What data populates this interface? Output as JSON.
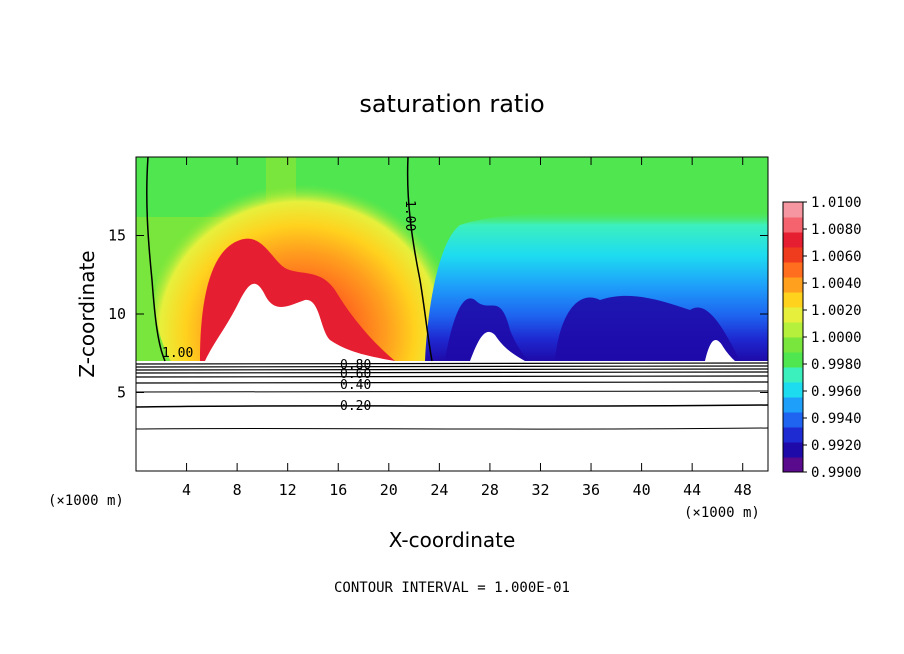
{
  "chart_data": {
    "type": "heatmap",
    "title": "saturation ratio",
    "xlabel": "X-coordinate",
    "ylabel": "Z-coordinate",
    "x_unit_label": "(×1000 m)",
    "y_unit_label": "(×1000 m)",
    "xlim": [
      0,
      50
    ],
    "ylim": [
      0,
      20
    ],
    "x_ticks": [
      4,
      8,
      12,
      16,
      20,
      24,
      28,
      32,
      36,
      40,
      44,
      48
    ],
    "y_ticks": [
      5,
      10,
      15
    ],
    "colorbar": {
      "min": 0.99,
      "max": 1.01,
      "tick_labels": [
        "1.0100",
        "1.0080",
        "1.0060",
        "1.0040",
        "1.0020",
        "1.0000",
        "0.9980",
        "0.9960",
        "0.9940",
        "0.9920",
        "0.9900"
      ],
      "colors": [
        "#5a0a8c",
        "#1e0aa8",
        "#1e2ad2",
        "#1e64f0",
        "#1ea0fa",
        "#1edcf0",
        "#3cf0be",
        "#50e650",
        "#78e63c",
        "#b4f03c",
        "#e6f03c",
        "#ffd21e",
        "#ffa01e",
        "#ff6e1e",
        "#f03c1e",
        "#e61e32",
        "#f5646e",
        "#f596a0"
      ]
    },
    "contour_labels": [
      "1.00",
      "1.00",
      "0.80",
      "0.60",
      "0.40",
      "0.20"
    ],
    "contour_interval_note": "CONTOUR INTERVAL = 1.000E-01",
    "warm_band": {
      "x_range": [
        5,
        21
      ],
      "z_range": [
        7.2,
        16.5
      ],
      "peak": 1.01
    },
    "cold_band": {
      "x_range": [
        23,
        47
      ],
      "z_range": [
        7.2,
        16
      ],
      "min": 0.99
    },
    "contour_line_1": {
      "x_at_top": 21.5,
      "x_at_bottom": 23.5
    },
    "horizontal_contour_levels_z": [
      2.8,
      4.2,
      5.3,
      5.8,
      6.1,
      6.4,
      6.7,
      7.0
    ]
  }
}
